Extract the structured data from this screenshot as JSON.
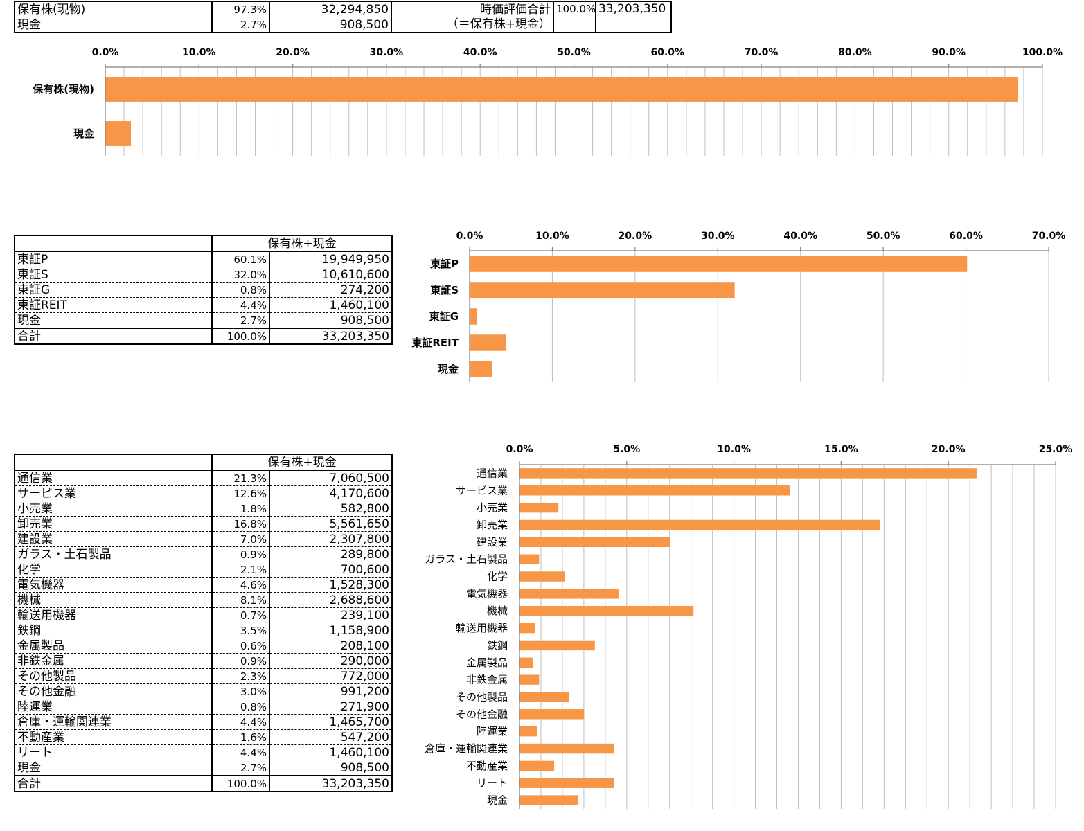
{
  "summary_table": {
    "rows": [
      {
        "label": "保有株(現物)",
        "pct": "97.3%",
        "value": "32,294,850"
      },
      {
        "label": "現金",
        "pct": "2.7%",
        "value": "908,500"
      }
    ],
    "total_label_1": "時価評価合計",
    "total_label_2": "（＝保有株+現金）",
    "total_pct": "100.0%",
    "total_value": "33,203,350"
  },
  "market_table": {
    "header": "保有株+現金",
    "rows": [
      {
        "label": "東証P",
        "pct": "60.1%",
        "value": "19,949,950"
      },
      {
        "label": "東証S",
        "pct": "32.0%",
        "value": "10,610,600"
      },
      {
        "label": "東証G",
        "pct": "0.8%",
        "value": "274,200"
      },
      {
        "label": "東証REIT",
        "pct": "4.4%",
        "value": "1,460,100"
      },
      {
        "label": "現金",
        "pct": "2.7%",
        "value": "908,500"
      }
    ],
    "total": {
      "label": "合計",
      "pct": "100.0%",
      "value": "33,203,350"
    }
  },
  "sector_table": {
    "header": "保有株+現金",
    "rows": [
      {
        "label": "通信業",
        "pct": "21.3%",
        "value": "7,060,500"
      },
      {
        "label": "サービス業",
        "pct": "12.6%",
        "value": "4,170,600"
      },
      {
        "label": "小売業",
        "pct": "1.8%",
        "value": "582,800"
      },
      {
        "label": "卸売業",
        "pct": "16.8%",
        "value": "5,561,650"
      },
      {
        "label": "建設業",
        "pct": "7.0%",
        "value": "2,307,800"
      },
      {
        "label": "ガラス・土石製品",
        "pct": "0.9%",
        "value": "289,800"
      },
      {
        "label": "化学",
        "pct": "2.1%",
        "value": "700,600"
      },
      {
        "label": "電気機器",
        "pct": "4.6%",
        "value": "1,528,300"
      },
      {
        "label": "機械",
        "pct": "8.1%",
        "value": "2,688,600"
      },
      {
        "label": "輸送用機器",
        "pct": "0.7%",
        "value": "239,100"
      },
      {
        "label": "鉄鋼",
        "pct": "3.5%",
        "value": "1,158,900"
      },
      {
        "label": "金属製品",
        "pct": "0.6%",
        "value": "208,100"
      },
      {
        "label": "非鉄金属",
        "pct": "0.9%",
        "value": "290,000"
      },
      {
        "label": "その他製品",
        "pct": "2.3%",
        "value": "772,000"
      },
      {
        "label": "その他金融",
        "pct": "3.0%",
        "value": "991,200"
      },
      {
        "label": "陸運業",
        "pct": "0.8%",
        "value": "271,900"
      },
      {
        "label": "倉庫・運輸関連業",
        "pct": "4.4%",
        "value": "1,465,700"
      },
      {
        "label": "不動産業",
        "pct": "1.6%",
        "value": "547,200"
      },
      {
        "label": "リート",
        "pct": "4.4%",
        "value": "1,460,100"
      },
      {
        "label": "現金",
        "pct": "2.7%",
        "value": "908,500"
      }
    ],
    "total": {
      "label": "合計",
      "pct": "100.0%",
      "value": "33,203,350"
    }
  },
  "colors": {
    "bar": "#F79646",
    "grid": "#BFBFBF",
    "axis": "#808080"
  },
  "chart_data": [
    {
      "type": "bar",
      "orientation": "horizontal",
      "title": "",
      "categories": [
        "保有株(現物)",
        "現金"
      ],
      "values": [
        97.3,
        2.7
      ],
      "tick_labels": [
        "0.0%",
        "10.0%",
        "20.0%",
        "30.0%",
        "40.0%",
        "50.0%",
        "60.0%",
        "70.0%",
        "80.0%",
        "90.0%",
        "100.0%"
      ],
      "xlim": [
        0,
        100
      ],
      "major_step": 10,
      "minor_step": 2,
      "axis_position": "top",
      "grid": true
    },
    {
      "type": "bar",
      "orientation": "horizontal",
      "title": "",
      "categories": [
        "東証P",
        "東証S",
        "東証G",
        "東証REIT",
        "現金"
      ],
      "values": [
        60.1,
        32.0,
        0.8,
        4.4,
        2.7
      ],
      "tick_labels": [
        "0.0%",
        "10.0%",
        "20.0%",
        "30.0%",
        "40.0%",
        "50.0%",
        "60.0%",
        "70.0%"
      ],
      "xlim": [
        0,
        70
      ],
      "major_step": 10,
      "minor_step": 10,
      "axis_position": "top",
      "grid": true
    },
    {
      "type": "bar",
      "orientation": "horizontal",
      "title": "",
      "categories": [
        "通信業",
        "サービス業",
        "小売業",
        "卸売業",
        "建設業",
        "ガラス・土石製品",
        "化学",
        "電気機器",
        "機械",
        "輸送用機器",
        "鉄鋼",
        "金属製品",
        "非鉄金属",
        "その他製品",
        "その他金融",
        "陸運業",
        "倉庫・運輸関連業",
        "不動産業",
        "リート",
        "現金"
      ],
      "values": [
        21.3,
        12.6,
        1.8,
        16.8,
        7.0,
        0.9,
        2.1,
        4.6,
        8.1,
        0.7,
        3.5,
        0.6,
        0.9,
        2.3,
        3.0,
        0.8,
        4.4,
        1.6,
        4.4,
        2.7
      ],
      "tick_labels": [
        "0.0%",
        "5.0%",
        "10.0%",
        "15.0%",
        "20.0%",
        "25.0%"
      ],
      "xlim": [
        0,
        25
      ],
      "major_step": 5,
      "minor_step": 1,
      "axis_position": "top",
      "grid": true
    }
  ]
}
